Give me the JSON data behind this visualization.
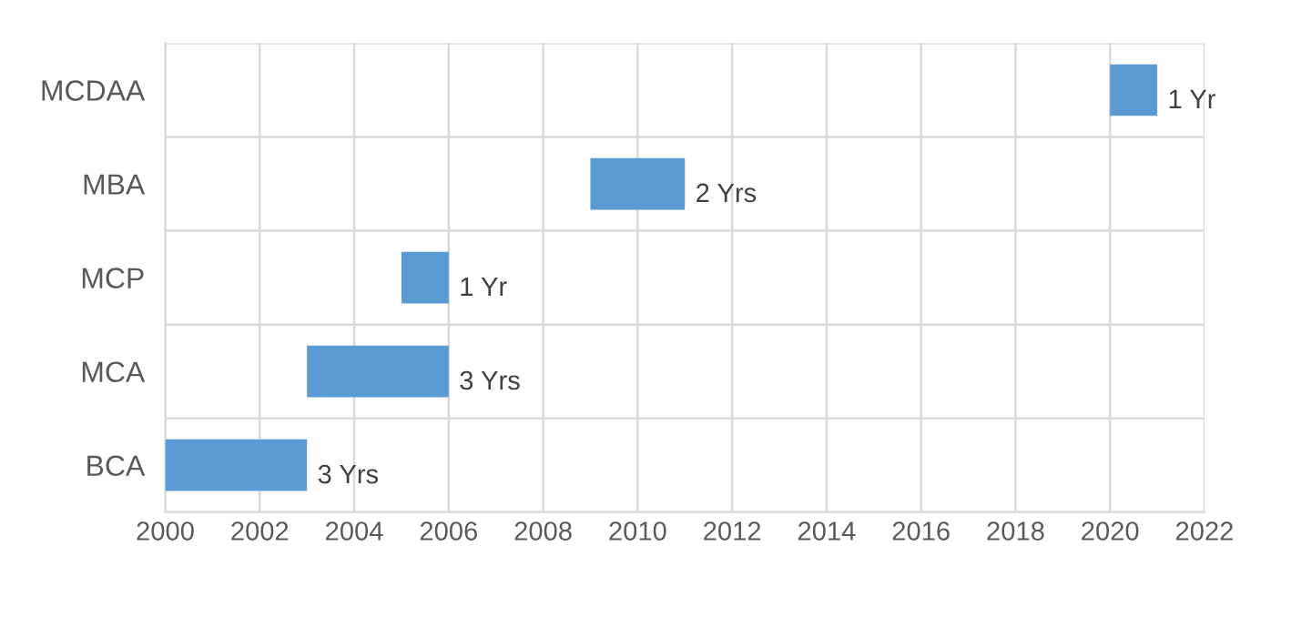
{
  "chart_data": {
    "type": "bar",
    "orientation": "horizontal",
    "categories": [
      "MCDAA",
      "MBA",
      "MCP",
      "MCA",
      "BCA"
    ],
    "base": [
      2020,
      2009,
      2005,
      2003,
      2000
    ],
    "values": [
      1,
      2,
      1,
      3,
      3
    ],
    "value_labels": [
      "1 Yr",
      "2 Yrs",
      "1 Yr",
      "3 Yrs",
      "3 Yrs"
    ],
    "color": "#5b9bd5",
    "xlim": [
      2000,
      2022
    ],
    "xticks": [
      2000,
      2002,
      2004,
      2006,
      2008,
      2010,
      2012,
      2014,
      2016,
      2018,
      2020,
      2022
    ],
    "grid": true
  }
}
